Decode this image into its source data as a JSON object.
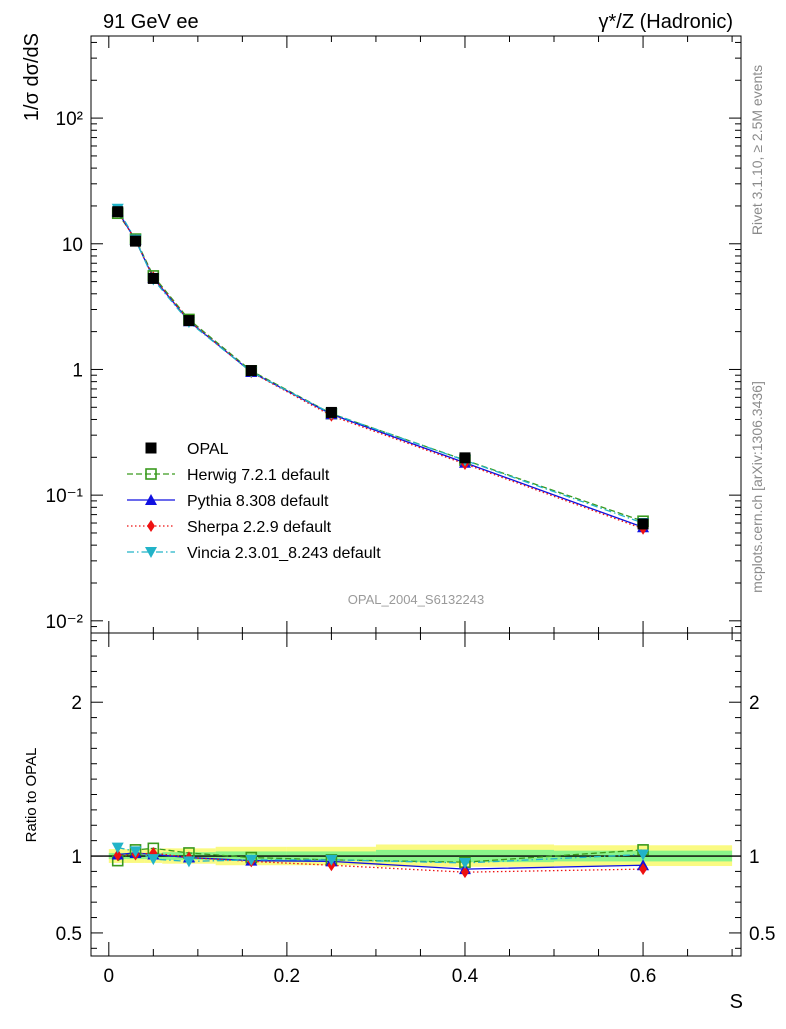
{
  "header": {
    "left_label": "91 GeV ee",
    "right_label": "γ*/Z (Hadronic)"
  },
  "side_labels": {
    "rivet": "Rivet 3.1.10, ≥ 2.5M events",
    "mcplots": "mcplots.cern.ch [arXiv:1306.3436]"
  },
  "analysis_tag": "OPAL_2004_S6132243",
  "colors": {
    "data": "#000000",
    "herwig": "#3a9a1e",
    "pythia": "#1010e0",
    "sherpa": "#ee1111",
    "vincia": "#22b3c8",
    "band_inner": "#8af58a",
    "band_outer": "#fafa82"
  },
  "chart_data": [
    {
      "type": "line",
      "panel": "main",
      "ylabel": "1/σ dσ/dS",
      "yscale": "log",
      "ylim": [
        0.008,
        450
      ],
      "xlim": [
        -0.02,
        0.71
      ],
      "y_ticks": [
        {
          "value": 0.01,
          "label": "10⁻²"
        },
        {
          "value": 0.1,
          "label": "10⁻¹"
        },
        {
          "value": 1,
          "label": "1"
        },
        {
          "value": 10,
          "label": "10"
        },
        {
          "value": 100,
          "label": "10²"
        }
      ],
      "legend_position": "middle-left",
      "x": [
        0.01,
        0.03,
        0.05,
        0.09,
        0.16,
        0.25,
        0.4,
        0.6
      ],
      "series": [
        {
          "name": "OPAL",
          "key": "data",
          "marker": "square-filled",
          "line": "none",
          "values": [
            18.0,
            10.5,
            5.3,
            2.45,
            0.98,
            0.455,
            0.198,
            0.059
          ]
        },
        {
          "name": "Herwig 7.2.1 default",
          "key": "herwig",
          "marker": "square-open",
          "line": "dashed",
          "values": [
            17.5,
            10.9,
            5.55,
            2.5,
            0.975,
            0.445,
            0.19,
            0.062
          ]
        },
        {
          "name": "Pythia 8.308 default",
          "key": "pythia",
          "marker": "triangle-up",
          "line": "solid",
          "values": [
            18.2,
            10.7,
            5.35,
            2.42,
            0.955,
            0.44,
            0.181,
            0.0555
          ]
        },
        {
          "name": "Sherpa 2.2.9 default",
          "key": "sherpa",
          "marker": "diamond",
          "line": "dotted",
          "values": [
            18.1,
            10.65,
            5.4,
            2.43,
            0.95,
            0.428,
            0.177,
            0.054
          ]
        },
        {
          "name": "Vincia 2.3.01_8.243 default",
          "key": "vincia",
          "marker": "triangle-down",
          "line": "dashdot",
          "values": [
            19.0,
            10.8,
            5.2,
            2.38,
            0.955,
            0.445,
            0.189,
            0.06
          ]
        }
      ]
    },
    {
      "type": "line",
      "panel": "ratio",
      "ylabel": "Ratio to OPAL",
      "xlabel": "S",
      "ylim": [
        0.35,
        2.45
      ],
      "xlim": [
        -0.02,
        0.71
      ],
      "y_ticks": [
        {
          "value": 0.5,
          "label": "0.5"
        },
        {
          "value": 1,
          "label": "1"
        },
        {
          "value": 2,
          "label": "2"
        }
      ],
      "x_ticks": [
        {
          "value": 0,
          "label": "0"
        },
        {
          "value": 0.2,
          "label": "0.2"
        },
        {
          "value": 0.4,
          "label": "0.4"
        },
        {
          "value": 0.6,
          "label": "0.6"
        }
      ],
      "reference": 1,
      "uncertainty_bands": [
        {
          "xlo": 0.0,
          "xhi": 0.02,
          "inner": [
            0.98,
            1.02
          ],
          "outer": [
            0.955,
            1.045
          ]
        },
        {
          "xlo": 0.02,
          "xhi": 0.04,
          "inner": [
            0.98,
            1.02
          ],
          "outer": [
            0.955,
            1.045
          ]
        },
        {
          "xlo": 0.04,
          "xhi": 0.06,
          "inner": [
            0.98,
            1.02
          ],
          "outer": [
            0.955,
            1.045
          ]
        },
        {
          "xlo": 0.06,
          "xhi": 0.12,
          "inner": [
            0.975,
            1.025
          ],
          "outer": [
            0.95,
            1.05
          ]
        },
        {
          "xlo": 0.12,
          "xhi": 0.2,
          "inner": [
            0.97,
            1.03
          ],
          "outer": [
            0.94,
            1.06
          ]
        },
        {
          "xlo": 0.2,
          "xhi": 0.3,
          "inner": [
            0.97,
            1.03
          ],
          "outer": [
            0.94,
            1.06
          ]
        },
        {
          "xlo": 0.3,
          "xhi": 0.5,
          "inner": [
            0.96,
            1.04
          ],
          "outer": [
            0.93,
            1.075
          ]
        },
        {
          "xlo": 0.5,
          "xhi": 0.7,
          "inner": [
            0.965,
            1.035
          ],
          "outer": [
            0.935,
            1.07
          ]
        }
      ],
      "x": [
        0.01,
        0.03,
        0.05,
        0.09,
        0.16,
        0.25,
        0.4,
        0.6
      ],
      "series": [
        {
          "name": "Herwig 7.2.1 default",
          "key": "herwig",
          "marker": "square-open",
          "line": "dashed",
          "values": [
            0.97,
            1.04,
            1.05,
            1.02,
            0.99,
            0.975,
            0.96,
            1.04
          ]
        },
        {
          "name": "Pythia 8.308 default",
          "key": "pythia",
          "marker": "triangle-up",
          "line": "solid",
          "values": [
            1.01,
            1.02,
            1.01,
            0.99,
            0.97,
            0.965,
            0.915,
            0.94
          ]
        },
        {
          "name": "Sherpa 2.2.9 default",
          "key": "sherpa",
          "marker": "diamond",
          "line": "dotted",
          "values": [
            1.005,
            1.01,
            1.02,
            0.99,
            0.965,
            0.94,
            0.895,
            0.915
          ]
        },
        {
          "name": "Vincia 2.3.01_8.243 default",
          "key": "vincia",
          "marker": "triangle-down",
          "line": "dashdot",
          "values": [
            1.055,
            1.03,
            0.98,
            0.965,
            0.975,
            0.975,
            0.955,
            1.01
          ]
        }
      ]
    }
  ]
}
